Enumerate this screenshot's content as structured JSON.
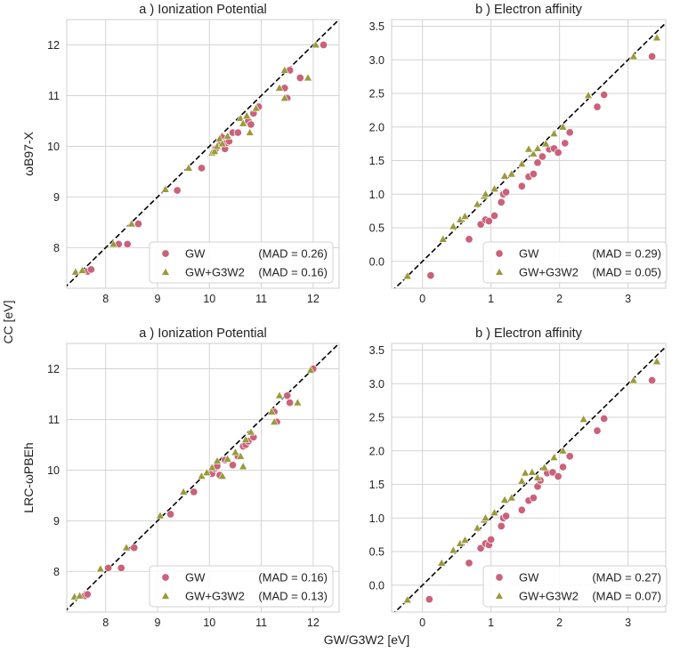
{
  "figure": {
    "shared_xlabel": "GW/G3W2 [eV]",
    "shared_ylabel": "CC [eV]",
    "row_labels": [
      "ωB97-X",
      "LRC-ωPBEh"
    ]
  },
  "colors": {
    "gw": "#c9627a",
    "g3w2": "#9a9a3c",
    "diag": "#000000",
    "grid": "#d4d4d4"
  },
  "chart_data": [
    {
      "type": "scatter",
      "title": "a ) Ionization Potential",
      "xlabel": "",
      "ylabel": "ωB97-X",
      "xlim": [
        7.25,
        12.5
      ],
      "ylim": [
        7.2,
        12.5
      ],
      "xticks": [
        8,
        9,
        10,
        11,
        12
      ],
      "yticks": [
        8,
        9,
        10,
        11,
        12
      ],
      "legend": [
        {
          "name": "GW",
          "mad": "(MAD = 0.26)"
        },
        {
          "name": "GW+G3W2",
          "mad": "(MAD = 0.16)"
        }
      ],
      "series": [
        {
          "name": "GW",
          "marker": "circle",
          "points": [
            [
              7.65,
              7.53
            ],
            [
              7.72,
              7.57
            ],
            [
              8.25,
              8.07
            ],
            [
              8.42,
              8.07
            ],
            [
              8.63,
              8.47
            ],
            [
              9.38,
              9.13
            ],
            [
              9.85,
              9.57
            ],
            [
              10.12,
              9.95
            ],
            [
              10.2,
              10.1
            ],
            [
              10.25,
              10.17
            ],
            [
              10.3,
              9.95
            ],
            [
              10.33,
              10.07
            ],
            [
              10.38,
              10.1
            ],
            [
              10.45,
              10.27
            ],
            [
              10.55,
              10.27
            ],
            [
              10.75,
              10.5
            ],
            [
              10.8,
              10.43
            ],
            [
              10.85,
              10.65
            ],
            [
              10.95,
              10.78
            ],
            [
              11.45,
              11.15
            ],
            [
              11.5,
              10.95
            ],
            [
              11.55,
              11.5
            ],
            [
              11.75,
              11.35
            ],
            [
              12.2,
              12.0
            ]
          ]
        },
        {
          "name": "GW+G3W2",
          "marker": "triangle",
          "points": [
            [
              7.42,
              7.52
            ],
            [
              7.55,
              7.55
            ],
            [
              8.15,
              8.07
            ],
            [
              8.5,
              8.47
            ],
            [
              9.15,
              9.15
            ],
            [
              9.6,
              9.57
            ],
            [
              10.05,
              9.87
            ],
            [
              10.1,
              9.9
            ],
            [
              10.15,
              10.0
            ],
            [
              10.2,
              10.15
            ],
            [
              10.25,
              10.05
            ],
            [
              10.35,
              10.2
            ],
            [
              10.6,
              10.55
            ],
            [
              10.65,
              10.45
            ],
            [
              10.72,
              10.6
            ],
            [
              10.78,
              10.27
            ],
            [
              10.9,
              10.75
            ],
            [
              11.35,
              11.15
            ],
            [
              11.45,
              10.95
            ],
            [
              11.45,
              11.5
            ],
            [
              11.9,
              11.35
            ],
            [
              12.05,
              12.0
            ]
          ]
        }
      ]
    },
    {
      "type": "scatter",
      "title": "b ) Electron affinity",
      "xlabel": "",
      "ylabel": "",
      "xlim": [
        -0.45,
        3.55
      ],
      "ylim": [
        -0.4,
        3.6
      ],
      "xticks": [
        0,
        1,
        2,
        3
      ],
      "yticks": [
        0.0,
        0.5,
        1.0,
        1.5,
        2.0,
        2.5,
        3.0,
        3.5
      ],
      "legend": [
        {
          "name": "GW",
          "mad": "(MAD = 0.29)"
        },
        {
          "name": "GW+G3W2",
          "mad": "(MAD = 0.05)"
        }
      ],
      "series": [
        {
          "name": "GW",
          "marker": "circle",
          "points": [
            [
              0.12,
              -0.21
            ],
            [
              0.68,
              0.33
            ],
            [
              0.85,
              0.55
            ],
            [
              0.92,
              0.62
            ],
            [
              0.97,
              0.6
            ],
            [
              1.05,
              0.68
            ],
            [
              1.15,
              0.88
            ],
            [
              1.18,
              1.0
            ],
            [
              1.22,
              1.03
            ],
            [
              1.45,
              1.12
            ],
            [
              1.55,
              1.26
            ],
            [
              1.62,
              1.3
            ],
            [
              1.68,
              1.47
            ],
            [
              1.75,
              1.56
            ],
            [
              1.85,
              1.67
            ],
            [
              1.92,
              1.68
            ],
            [
              1.98,
              1.62
            ],
            [
              2.08,
              1.76
            ],
            [
              2.15,
              1.92
            ],
            [
              2.55,
              2.3
            ],
            [
              2.65,
              2.48
            ],
            [
              3.35,
              3.05
            ]
          ]
        },
        {
          "name": "GW+G3W2",
          "marker": "triangle",
          "points": [
            [
              -0.22,
              -0.22
            ],
            [
              0.3,
              0.33
            ],
            [
              0.45,
              0.52
            ],
            [
              0.55,
              0.62
            ],
            [
              0.62,
              0.67
            ],
            [
              0.8,
              0.85
            ],
            [
              0.9,
              0.97
            ],
            [
              0.92,
              1.0
            ],
            [
              1.05,
              1.08
            ],
            [
              1.2,
              1.27
            ],
            [
              1.3,
              1.3
            ],
            [
              1.45,
              1.45
            ],
            [
              1.55,
              1.67
            ],
            [
              1.62,
              1.6
            ],
            [
              1.68,
              1.68
            ],
            [
              1.8,
              1.75
            ],
            [
              1.92,
              1.9
            ],
            [
              2.05,
              2.0
            ],
            [
              2.42,
              2.47
            ],
            [
              3.08,
              3.05
            ],
            [
              3.42,
              3.33
            ]
          ]
        }
      ]
    },
    {
      "type": "scatter",
      "title": "a ) Ionization Potential",
      "xlabel": "",
      "ylabel": "LRC-ωPBEh",
      "xlim": [
        7.25,
        12.5
      ],
      "ylim": [
        7.2,
        12.5
      ],
      "xticks": [
        8,
        9,
        10,
        11,
        12
      ],
      "yticks": [
        8,
        9,
        10,
        11,
        12
      ],
      "legend": [
        {
          "name": "GW",
          "mad": "(MAD = 0.16)"
        },
        {
          "name": "GW+G3W2",
          "mad": "(MAD = 0.13)"
        }
      ],
      "series": [
        {
          "name": "GW",
          "marker": "circle",
          "points": [
            [
              7.6,
              7.52
            ],
            [
              7.65,
              7.55
            ],
            [
              8.05,
              8.07
            ],
            [
              8.3,
              8.07
            ],
            [
              8.55,
              8.47
            ],
            [
              9.25,
              9.13
            ],
            [
              9.7,
              9.57
            ],
            [
              10.05,
              9.93
            ],
            [
              10.1,
              10.03
            ],
            [
              10.15,
              10.08
            ],
            [
              10.2,
              9.9
            ],
            [
              10.3,
              10.2
            ],
            [
              10.45,
              10.1
            ],
            [
              10.55,
              10.27
            ],
            [
              10.65,
              10.47
            ],
            [
              10.7,
              10.5
            ],
            [
              10.75,
              10.57
            ],
            [
              10.85,
              10.65
            ],
            [
              11.25,
              11.15
            ],
            [
              11.3,
              10.95
            ],
            [
              11.5,
              11.47
            ],
            [
              11.55,
              11.33
            ],
            [
              12.0,
              12.0
            ]
          ]
        },
        {
          "name": "GW+G3W2",
          "marker": "triangle",
          "points": [
            [
              7.4,
              7.5
            ],
            [
              7.5,
              7.52
            ],
            [
              7.9,
              8.05
            ],
            [
              8.4,
              8.47
            ],
            [
              9.05,
              9.1
            ],
            [
              9.5,
              9.57
            ],
            [
              9.85,
              9.88
            ],
            [
              9.95,
              9.95
            ],
            [
              10.05,
              10.05
            ],
            [
              10.15,
              10.18
            ],
            [
              10.25,
              9.88
            ],
            [
              10.35,
              10.22
            ],
            [
              10.5,
              10.35
            ],
            [
              10.6,
              10.27
            ],
            [
              10.65,
              10.07
            ],
            [
              10.7,
              10.6
            ],
            [
              10.8,
              10.75
            ],
            [
              11.2,
              11.15
            ],
            [
              11.25,
              10.95
            ],
            [
              11.35,
              11.47
            ],
            [
              11.7,
              11.33
            ],
            [
              11.95,
              11.97
            ]
          ]
        }
      ]
    },
    {
      "type": "scatter",
      "title": "b ) Electron affinity",
      "xlabel": "",
      "ylabel": "",
      "xlim": [
        -0.45,
        3.55
      ],
      "ylim": [
        -0.4,
        3.6
      ],
      "xticks": [
        0,
        1,
        2,
        3
      ],
      "yticks": [
        0.0,
        0.5,
        1.0,
        1.5,
        2.0,
        2.5,
        3.0,
        3.5
      ],
      "legend": [
        {
          "name": "GW",
          "mad": "(MAD = 0.27)"
        },
        {
          "name": "GW+G3W2",
          "mad": "(MAD = 0.07)"
        }
      ],
      "series": [
        {
          "name": "GW",
          "marker": "circle",
          "points": [
            [
              0.1,
              -0.21
            ],
            [
              0.68,
              0.33
            ],
            [
              0.85,
              0.55
            ],
            [
              0.92,
              0.62
            ],
            [
              0.97,
              0.6
            ],
            [
              1.0,
              0.68
            ],
            [
              1.15,
              0.88
            ],
            [
              1.18,
              1.0
            ],
            [
              1.22,
              1.03
            ],
            [
              1.45,
              1.12
            ],
            [
              1.55,
              1.26
            ],
            [
              1.62,
              1.3
            ],
            [
              1.68,
              1.47
            ],
            [
              1.72,
              1.56
            ],
            [
              1.82,
              1.67
            ],
            [
              1.9,
              1.68
            ],
            [
              1.98,
              1.62
            ],
            [
              2.05,
              1.76
            ],
            [
              2.15,
              1.92
            ],
            [
              2.55,
              2.3
            ],
            [
              2.65,
              2.48
            ],
            [
              3.35,
              3.05
            ]
          ]
        },
        {
          "name": "GW+G3W2",
          "marker": "triangle",
          "points": [
            [
              -0.22,
              -0.22
            ],
            [
              0.28,
              0.33
            ],
            [
              0.45,
              0.52
            ],
            [
              0.55,
              0.62
            ],
            [
              0.62,
              0.67
            ],
            [
              0.8,
              0.85
            ],
            [
              0.9,
              0.97
            ],
            [
              0.92,
              1.0
            ],
            [
              1.05,
              1.08
            ],
            [
              1.2,
              1.27
            ],
            [
              1.3,
              1.3
            ],
            [
              1.45,
              1.55
            ],
            [
              1.5,
              1.67
            ],
            [
              1.6,
              1.68
            ],
            [
              1.68,
              1.6
            ],
            [
              1.78,
              1.75
            ],
            [
              1.92,
              1.9
            ],
            [
              2.05,
              2.0
            ],
            [
              2.35,
              2.47
            ],
            [
              3.08,
              3.05
            ],
            [
              3.42,
              3.33
            ]
          ]
        }
      ]
    }
  ]
}
